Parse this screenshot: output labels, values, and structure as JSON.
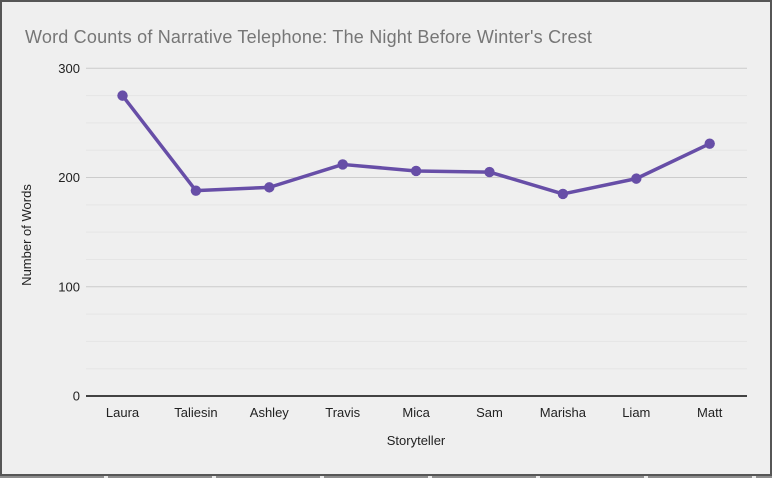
{
  "colors": {
    "canvas_background": "#efefef",
    "frame_border": "#565656",
    "title_text": "#767676",
    "axis_text": "#222222",
    "gridline_major": "#cccccc",
    "gridline_minor": "#e5e5e5",
    "zero_axis_line": "#424242",
    "series_purple": "#674ea7"
  },
  "chart_data": {
    "type": "line",
    "title": "Word Counts of Narrative Telephone: The Night Before Winter's Crest",
    "xlabel": "Storyteller",
    "ylabel": "Number of Words",
    "categories": [
      "Laura",
      "Taliesin",
      "Ashley",
      "Travis",
      "Mica",
      "Sam",
      "Marisha",
      "Liam",
      "Matt"
    ],
    "series": [
      {
        "name": "Number of Words",
        "values": [
          275,
          188,
          191,
          212,
          206,
          205,
          185,
          199,
          231
        ]
      }
    ],
    "ylim": [
      0,
      300
    ],
    "yticks": [
      0,
      100,
      200,
      300
    ],
    "minor_grid_step": 25,
    "grid": true,
    "legend_position": "none",
    "point_shape": "circle",
    "line_smoothing": false
  }
}
